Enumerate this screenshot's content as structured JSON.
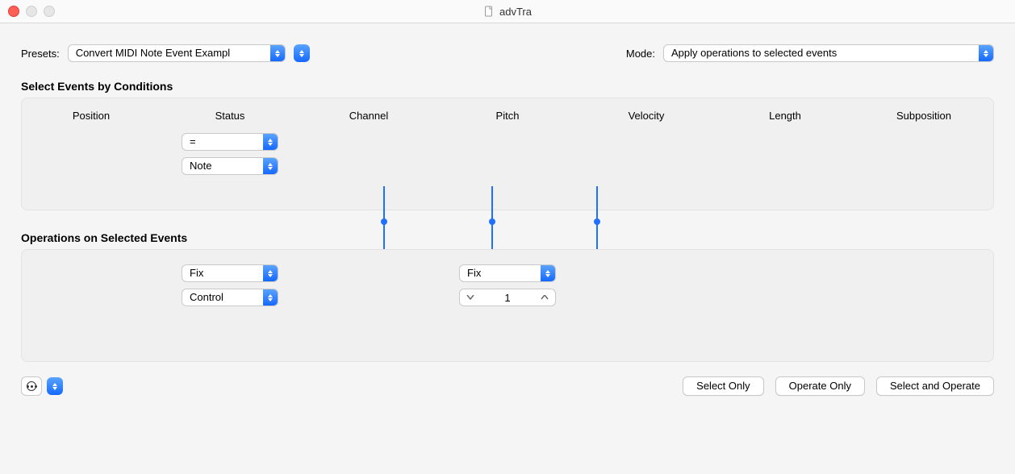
{
  "window": {
    "title": "advTra"
  },
  "top": {
    "presets_label": "Presets:",
    "preset_value": "Convert MIDI Note Event Exampl",
    "mode_label": "Mode:",
    "mode_value": "Apply operations to selected events"
  },
  "conditions": {
    "title": "Select Events by Conditions",
    "columns": [
      "Position",
      "Status",
      "Channel",
      "Pitch",
      "Velocity",
      "Length",
      "Subposition"
    ],
    "status_operator": "=",
    "status_value": "Note"
  },
  "dividers": {
    "positions_pct": [
      37.3,
      48.4,
      59.2
    ]
  },
  "operations": {
    "title": "Operations on Selected Events",
    "status_op": "Fix",
    "status_value": "Control",
    "pitch_op": "Fix",
    "pitch_value": "1"
  },
  "footer": {
    "select_only": "Select Only",
    "operate_only": "Operate Only",
    "select_and_operate": "Select and Operate"
  }
}
